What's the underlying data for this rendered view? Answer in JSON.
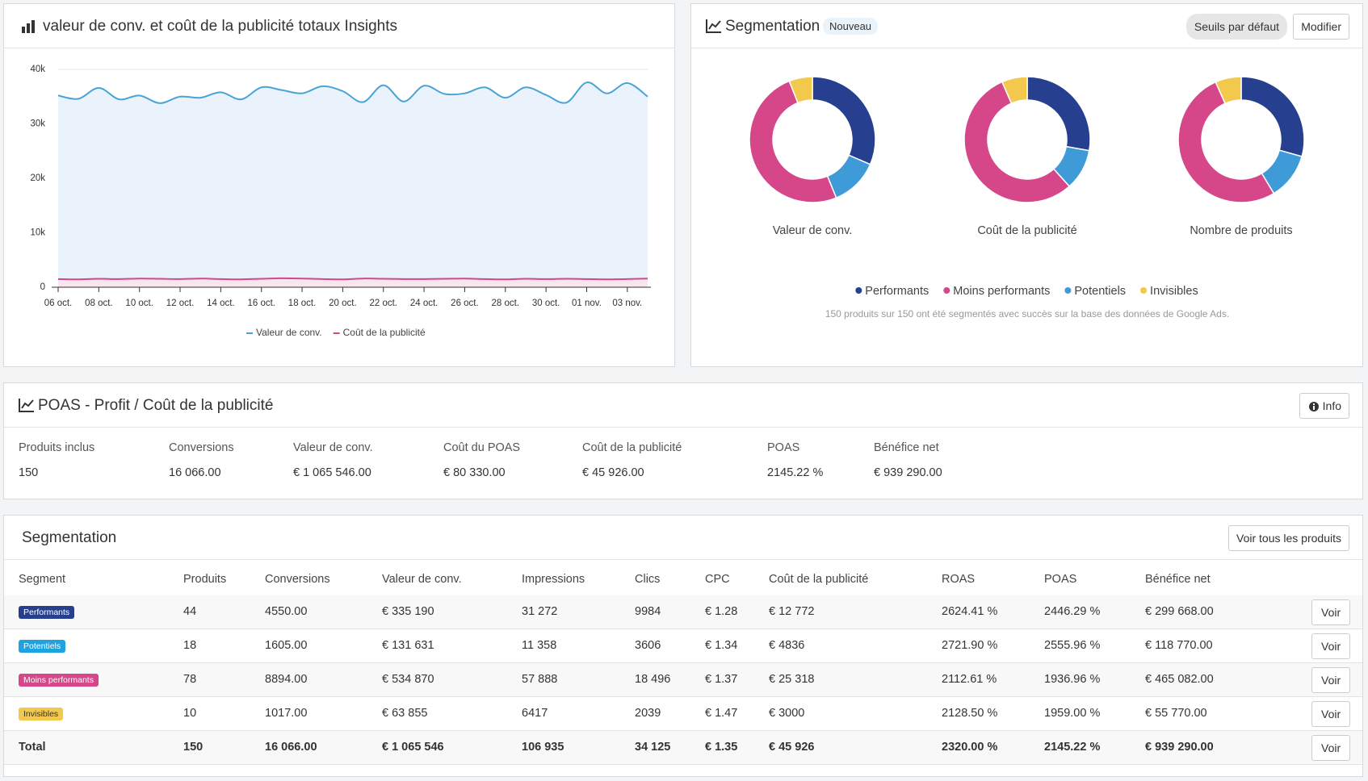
{
  "line_panel": {
    "title": "valeur de conv. et coût de la publicité totaux Insights"
  },
  "chart_data": [
    {
      "type": "line",
      "categories": [
        "06 oct.",
        null,
        "08 oct.",
        null,
        "10 oct.",
        null,
        "12 oct.",
        null,
        "14 oct.",
        null,
        "16 oct.",
        null,
        "18 oct.",
        null,
        "20 oct.",
        null,
        "22 oct.",
        null,
        "24 oct.",
        null,
        "26 oct.",
        null,
        "28 oct.",
        null,
        "30 oct.",
        null,
        "01 nov.",
        null,
        "03 nov.",
        null
      ],
      "series": [
        {
          "name": "Valeur de conv.",
          "color": "#4aa3d6",
          "values": [
            35200,
            34600,
            36600,
            34500,
            35200,
            33800,
            35000,
            34800,
            35800,
            34500,
            36700,
            36200,
            35600,
            36900,
            36000,
            34000,
            37100,
            34100,
            37000,
            35500,
            35600,
            36700,
            34800,
            36700,
            35300,
            33900,
            37600,
            35600,
            37500,
            35000
          ]
        },
        {
          "name": "Coût de la publicité",
          "color": "#d6478a",
          "values": [
            1500,
            1450,
            1550,
            1500,
            1600,
            1550,
            1500,
            1600,
            1500,
            1450,
            1550,
            1650,
            1600,
            1500,
            1450,
            1600,
            1550,
            1500,
            1500,
            1550,
            1600,
            1500,
            1450,
            1550,
            1500,
            1550,
            1500,
            1450,
            1500,
            1600
          ]
        }
      ],
      "ylim": [
        0,
        40000
      ],
      "yticks": [
        0,
        {
          "value": 10000,
          "label": "10k"
        },
        {
          "value": 20000,
          "label": "20k"
        },
        {
          "value": 30000,
          "label": "30k"
        },
        {
          "value": 40000,
          "label": "40k"
        }
      ],
      "grid": true
    },
    {
      "type": "donut",
      "title": "Valeur de conv.",
      "values": [
        335190,
        534870,
        131631,
        63855
      ]
    },
    {
      "type": "donut",
      "title": "Coût de la publicité",
      "values": [
        12772,
        25318,
        4836,
        3000
      ]
    },
    {
      "type": "donut",
      "title": "Nombre de produits",
      "values": [
        44,
        78,
        18,
        10
      ]
    }
  ],
  "segmentation_panel": {
    "title": "Segmentation",
    "badge": "Nouveau",
    "buttons": [
      "Seuils par défaut",
      "Modifier"
    ],
    "legend": {
      "names": [
        "Performants",
        "Moins performants",
        "Potentiels",
        "Invisibles"
      ],
      "colors": [
        "#263f8f",
        "#d6478a",
        "#3f9bd8",
        "#f2c94c"
      ]
    },
    "note": "150 produits sur 150 ont été segmentés avec succès sur la base des données de Google Ads."
  },
  "poas": {
    "title": "POAS - Profit / Coût de la publicité",
    "button": "Info",
    "labels": [
      "Produits inclus",
      "Conversions",
      "Valeur de conv.",
      "Coût du POAS",
      "Coût de la publicité",
      "POAS",
      "Bénéfice net"
    ],
    "values": [
      "150",
      "16 066.00",
      "€ 1 065 546.00",
      "€ 80 330.00",
      "€ 45 926.00",
      "2145.22 %",
      "€ 939 290.00"
    ]
  },
  "table": {
    "title": "Segmentation",
    "button": "Voir tous les produits",
    "action": "Voir",
    "header": [
      "Segment",
      "Produits",
      "Conversions",
      "Valeur de conv.",
      "Impressions",
      "Clics",
      "CPC",
      "Coût de la publicité",
      "ROAS",
      "POAS",
      "Bénéfice net"
    ],
    "rows": [
      [
        "Performants",
        "44",
        "4550.00",
        "€ 335 190",
        "31 272",
        "9984",
        "€ 1.28",
        "€ 12 772",
        "2624.41 %",
        "2446.29 %",
        "€ 299 668.00"
      ],
      [
        "Potentiels",
        "18",
        "1605.00",
        "€ 131 631",
        "11 358",
        "3606",
        "€ 1.34",
        "€ 4836",
        "2721.90 %",
        "2555.96 %",
        "€ 118 770.00"
      ],
      [
        "Moins performants",
        "78",
        "8894.00",
        "€ 534 870",
        "57 888",
        "18 496",
        "€ 1.37",
        "€ 25 318",
        "2112.61 %",
        "1936.96 %",
        "€ 465 082.00"
      ],
      [
        "Invisibles",
        "10",
        "1017.00",
        "€ 63 855",
        "6417",
        "2039",
        "€ 1.47",
        "€ 3000",
        "2128.50 %",
        "1959.00 %",
        "€ 55 770.00"
      ],
      [
        "Total",
        "150",
        "16 066.00",
        "€ 1 065 546",
        "106 935",
        "34 125",
        "€ 1.35",
        "€ 45 926",
        "2320.00 %",
        "2145.22 %",
        "€ 939 290.00"
      ]
    ]
  }
}
